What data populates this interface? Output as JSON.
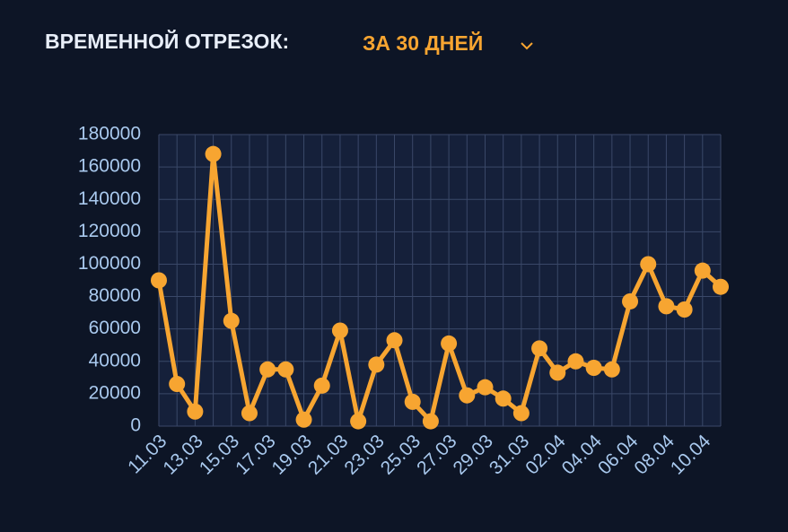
{
  "chart_data": {
    "type": "line",
    "title": "ВРЕМЕННОЙ ОТРЕЗОК:",
    "period": "ЗА 30 ДНЕЙ",
    "categories": [
      "11.03",
      null,
      "13.03",
      null,
      "15.03",
      null,
      "17.03",
      null,
      "19.03",
      null,
      "21.03",
      null,
      "23.03",
      null,
      "25.03",
      null,
      "27.03",
      null,
      "29.03",
      null,
      "31.03",
      null,
      "02.04",
      null,
      "04.04",
      null,
      "06.04",
      null,
      "08.04",
      null,
      "10.04",
      null
    ],
    "series": [
      {
        "name": "value",
        "color": "#f7a531",
        "values": [
          90000,
          26000,
          9000,
          168000,
          65000,
          8000,
          35000,
          35000,
          4000,
          25000,
          59000,
          3000,
          38000,
          53000,
          15000,
          3000,
          51000,
          19000,
          24000,
          17000,
          8000,
          48000,
          33000,
          40000,
          36000,
          35000,
          77000,
          100000,
          74000,
          72000,
          96000,
          86000
        ]
      }
    ],
    "ylim": [
      0,
      180000
    ],
    "yticks": [
      0,
      20000,
      40000,
      60000,
      80000,
      100000,
      120000,
      140000,
      160000,
      180000
    ],
    "grid": true
  }
}
